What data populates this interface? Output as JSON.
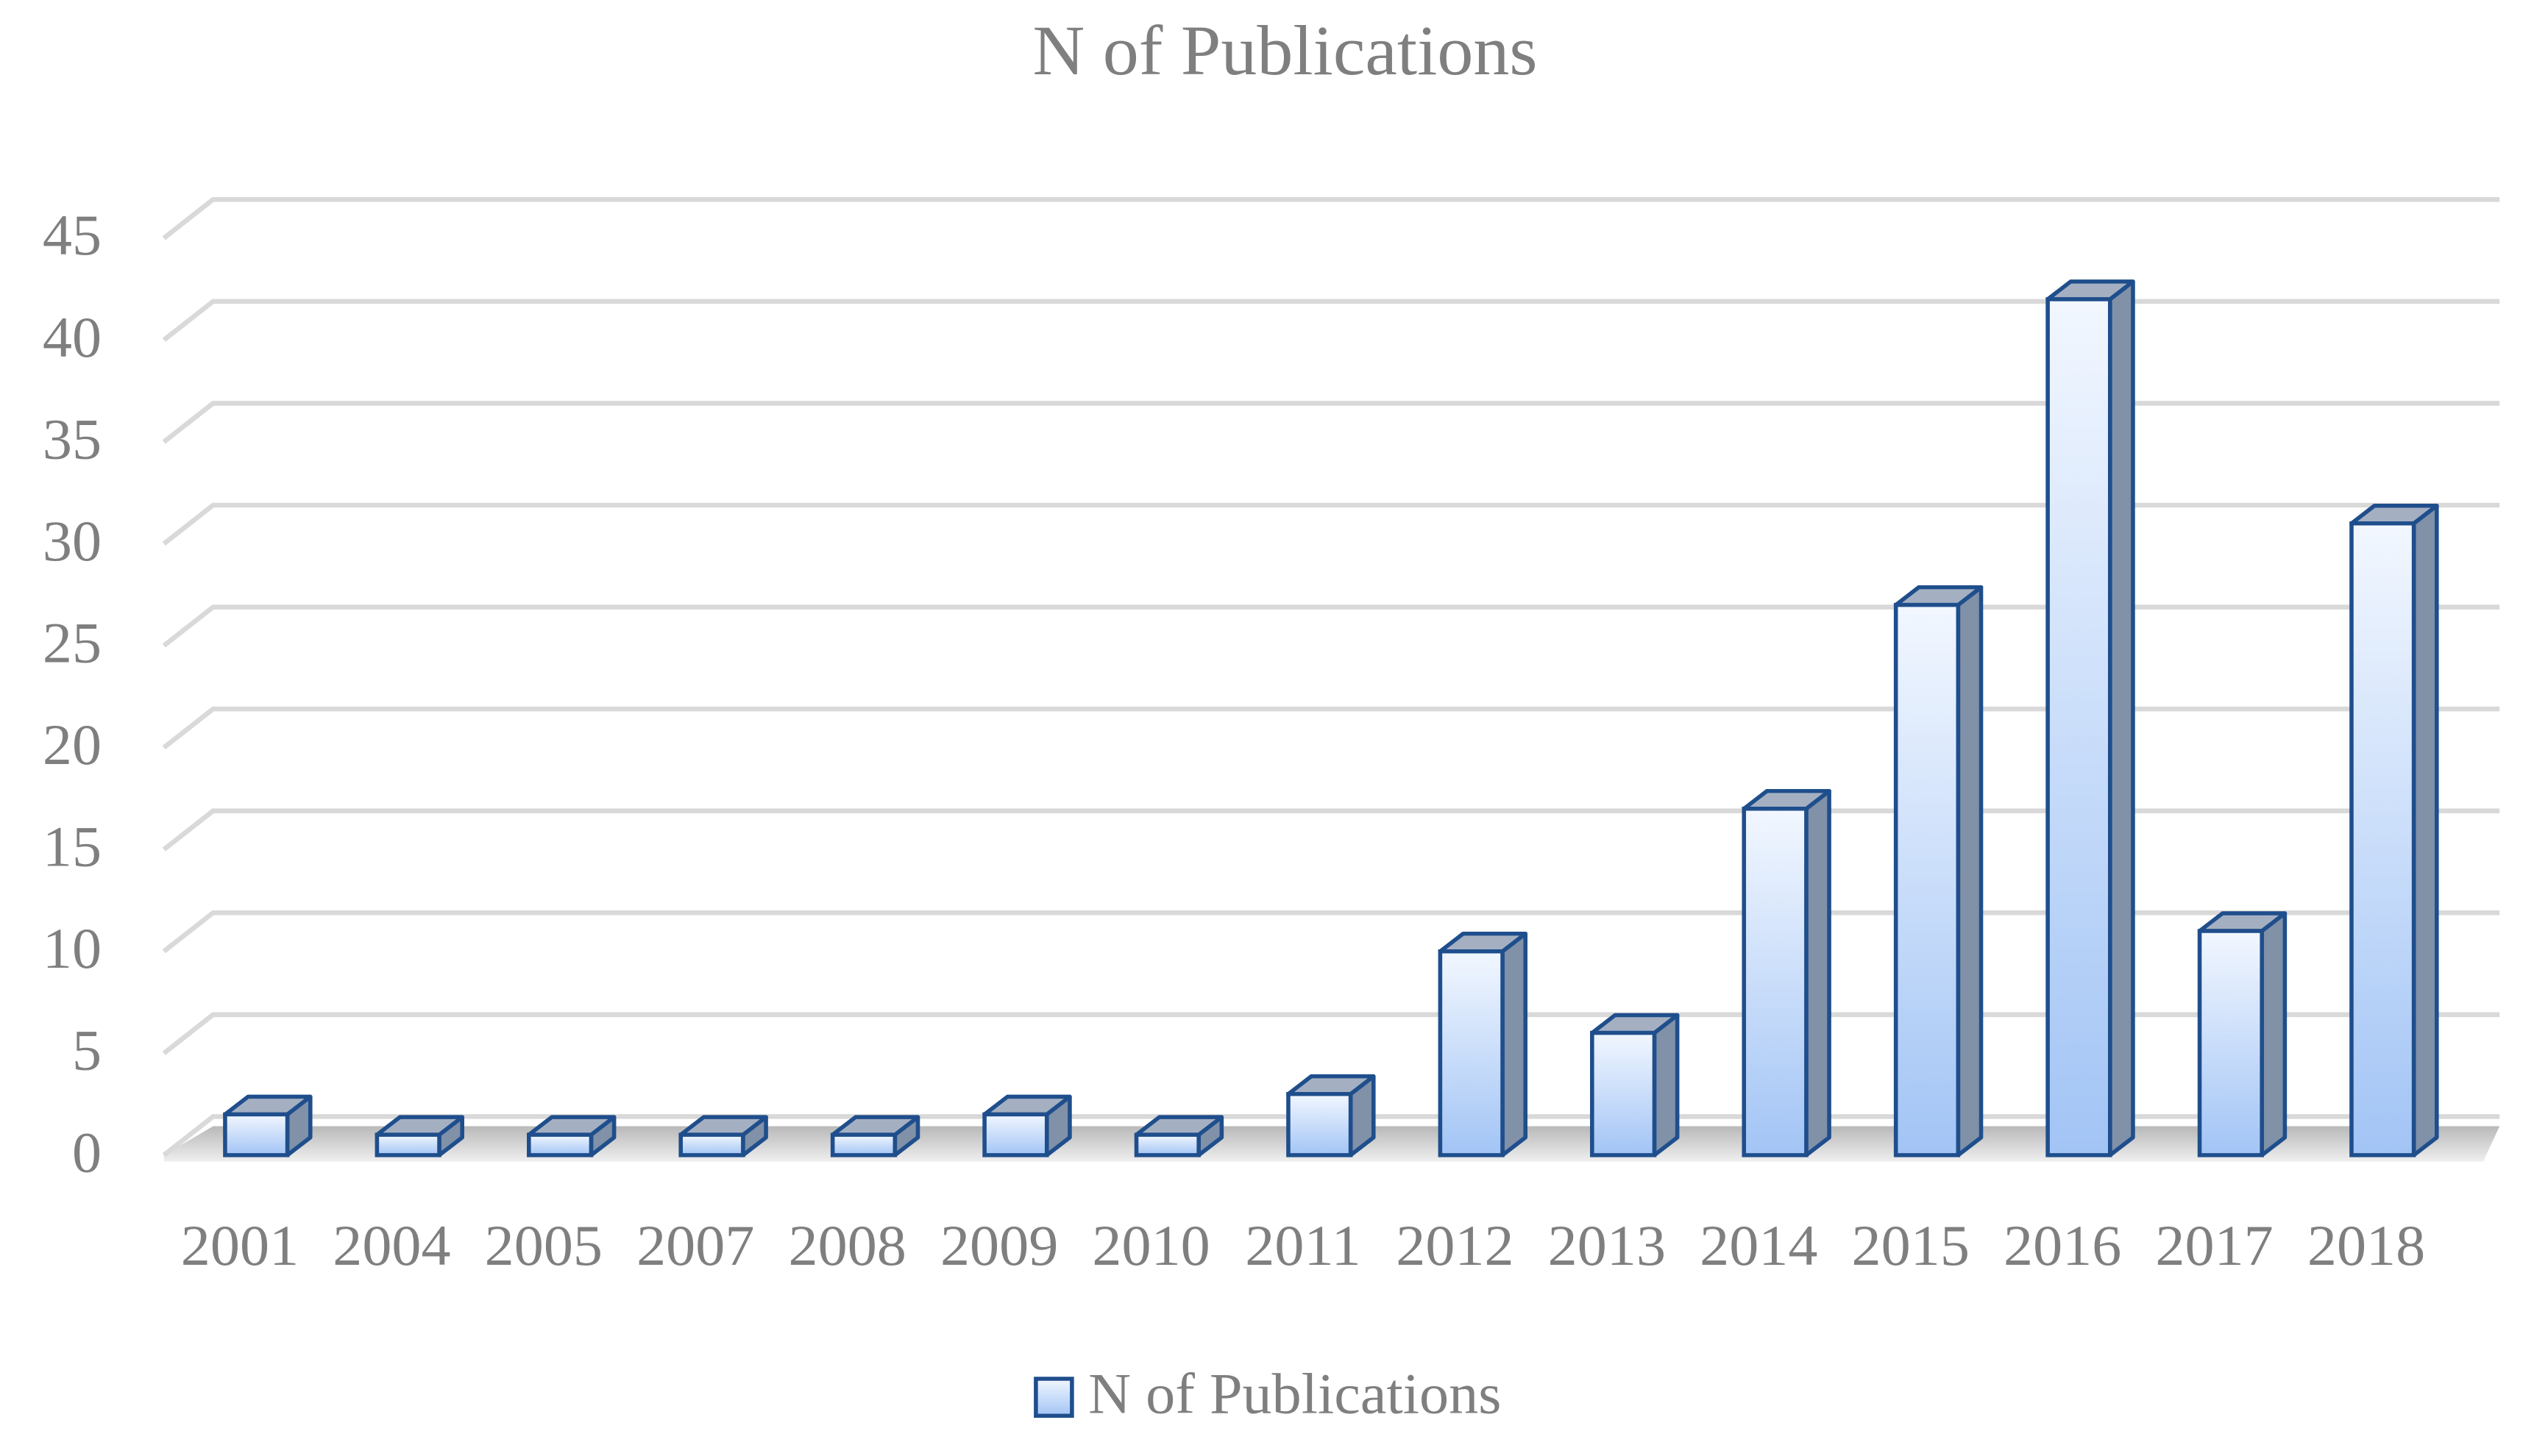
{
  "chart_data": {
    "type": "bar3d",
    "title": "N of Publications",
    "categories": [
      "2001",
      "2004",
      "2005",
      "2007",
      "2008",
      "2009",
      "2010",
      "2011",
      "2012",
      "2013",
      "2014",
      "2015",
      "2016",
      "2017",
      "2018"
    ],
    "series": [
      {
        "name": "N of Publications",
        "color": "#a9c8f7",
        "values": [
          2,
          1,
          1,
          1,
          1,
          2,
          1,
          3,
          10,
          6,
          17,
          27,
          42,
          11,
          31
        ]
      }
    ],
    "ylim": [
      0,
      45
    ],
    "yticks": [
      0,
      5,
      10,
      15,
      20,
      25,
      30,
      35,
      40,
      45
    ],
    "grid": true,
    "legend": "bottom"
  }
}
